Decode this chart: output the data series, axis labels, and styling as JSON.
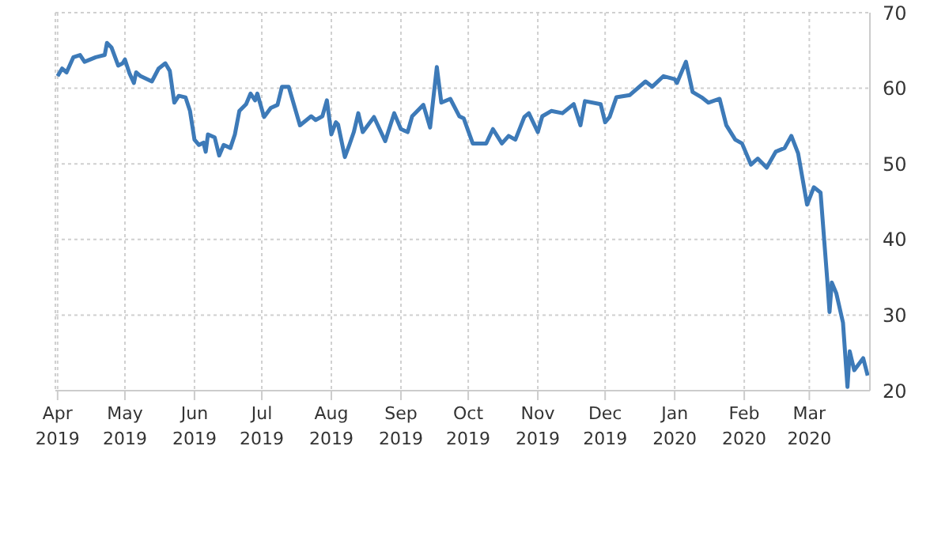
{
  "chart_data": {
    "type": "line",
    "x": [
      "2019-04-01",
      "2019-04-03",
      "2019-04-05",
      "2019-04-08",
      "2019-04-11",
      "2019-04-13",
      "2019-04-18",
      "2019-04-22",
      "2019-04-23",
      "2019-04-25",
      "2019-04-28",
      "2019-04-30",
      "2019-05-01",
      "2019-05-03",
      "2019-05-05",
      "2019-05-06",
      "2019-05-08",
      "2019-05-13",
      "2019-05-16",
      "2019-05-19",
      "2019-05-21",
      "2019-05-23",
      "2019-05-25",
      "2019-05-28",
      "2019-05-30",
      "2019-06-01",
      "2019-06-03",
      "2019-06-05",
      "2019-06-06",
      "2019-06-07",
      "2019-06-10",
      "2019-06-12",
      "2019-06-14",
      "2019-06-17",
      "2019-06-19",
      "2019-06-21",
      "2019-06-24",
      "2019-06-26",
      "2019-06-28",
      "2019-06-29",
      "2019-07-02",
      "2019-07-05",
      "2019-07-08",
      "2019-07-10",
      "2019-07-13",
      "2019-07-18",
      "2019-07-23",
      "2019-07-25",
      "2019-07-28",
      "2019-07-30",
      "2019-08-01",
      "2019-08-03",
      "2019-08-04",
      "2019-08-07",
      "2019-08-09",
      "2019-08-11",
      "2019-08-13",
      "2019-08-15",
      "2019-08-20",
      "2019-08-25",
      "2019-08-29",
      "2019-09-01",
      "2019-09-04",
      "2019-09-06",
      "2019-09-11",
      "2019-09-14",
      "2019-09-17",
      "2019-09-19",
      "2019-09-23",
      "2019-09-27",
      "2019-09-29",
      "2019-10-03",
      "2019-10-09",
      "2019-10-12",
      "2019-10-16",
      "2019-10-19",
      "2019-10-22",
      "2019-10-26",
      "2019-10-28",
      "2019-11-01",
      "2019-11-03",
      "2019-11-07",
      "2019-11-12",
      "2019-11-17",
      "2019-11-20",
      "2019-11-22",
      "2019-11-29",
      "2019-12-01",
      "2019-12-03",
      "2019-12-06",
      "2019-12-12",
      "2019-12-19",
      "2019-12-22",
      "2019-12-27",
      "2020-01-01",
      "2020-01-02",
      "2020-01-06",
      "2020-01-09",
      "2020-01-13",
      "2020-01-16",
      "2020-01-21",
      "2020-01-24",
      "2020-01-28",
      "2020-01-31",
      "2020-02-04",
      "2020-02-07",
      "2020-02-11",
      "2020-02-15",
      "2020-02-19",
      "2020-02-22",
      "2020-02-25",
      "2020-02-29",
      "2020-03-03",
      "2020-03-06",
      "2020-03-09",
      "2020-03-10",
      "2020-03-11",
      "2020-03-13",
      "2020-03-16",
      "2020-03-18",
      "2020-03-19",
      "2020-03-21",
      "2020-03-25",
      "2020-03-27"
    ],
    "series": [
      {
        "color": "#3d7ab8",
        "values": [
          61.6,
          62.6,
          62.1,
          64.1,
          64.4,
          63.5,
          64.1,
          64.4,
          66.0,
          65.4,
          63.0,
          63.3,
          63.8,
          62.0,
          60.7,
          62.1,
          61.6,
          60.9,
          62.6,
          63.3,
          62.3,
          58.1,
          59.0,
          58.8,
          57.0,
          53.2,
          52.5,
          52.8,
          51.6,
          53.9,
          53.5,
          51.1,
          52.5,
          52.1,
          53.9,
          57.0,
          57.9,
          59.3,
          58.4,
          59.3,
          56.2,
          57.4,
          57.8,
          60.2,
          60.2,
          55.1,
          56.3,
          55.8,
          56.3,
          58.4,
          53.9,
          55.5,
          55.2,
          50.9,
          52.5,
          54.2,
          56.7,
          54.2,
          56.2,
          53.0,
          56.7,
          54.6,
          54.2,
          56.3,
          57.8,
          54.8,
          62.8,
          58.1,
          58.6,
          56.3,
          56.0,
          52.7,
          52.7,
          54.6,
          52.7,
          53.7,
          53.2,
          56.2,
          56.7,
          54.2,
          56.3,
          57.0,
          56.7,
          57.9,
          55.1,
          58.3,
          57.9,
          55.5,
          56.2,
          58.8,
          59.1,
          60.9,
          60.2,
          61.6,
          61.2,
          60.7,
          63.5,
          59.5,
          58.8,
          58.1,
          58.6,
          55.1,
          53.2,
          52.7,
          49.9,
          50.7,
          49.5,
          51.6,
          52.1,
          53.7,
          51.4,
          44.6,
          46.9,
          46.2,
          34.6,
          30.4,
          34.3,
          32.9,
          29.0,
          20.5,
          25.2,
          22.7,
          24.3,
          22.0
        ]
      }
    ],
    "xlim": [
      "2019-03-31",
      "2020-03-28"
    ],
    "xticks": [
      {
        "value": "2019-04",
        "label": "Apr 2019"
      },
      {
        "value": "2019-05",
        "label": "May 2019"
      },
      {
        "value": "2019-06",
        "label": "Jun 2019"
      },
      {
        "value": "2019-07",
        "label": "Jul 2019"
      },
      {
        "value": "2019-08",
        "label": "Aug 2019"
      },
      {
        "value": "2019-09",
        "label": "Sep 2019"
      },
      {
        "value": "2019-10",
        "label": "Oct 2019"
      },
      {
        "value": "2019-11",
        "label": "Nov 2019"
      },
      {
        "value": "2019-12",
        "label": "Dec 2019"
      },
      {
        "value": "2020-01",
        "label": "Jan 2020"
      },
      {
        "value": "2020-02",
        "label": "Feb 2020"
      },
      {
        "value": "2020-03",
        "label": "Mar 2020"
      }
    ],
    "ylim": [
      20,
      70
    ],
    "yticks": [
      20,
      30,
      40,
      50,
      60,
      70
    ],
    "grid": true,
    "legend": false,
    "marker": "none",
    "line_style": "solid"
  }
}
